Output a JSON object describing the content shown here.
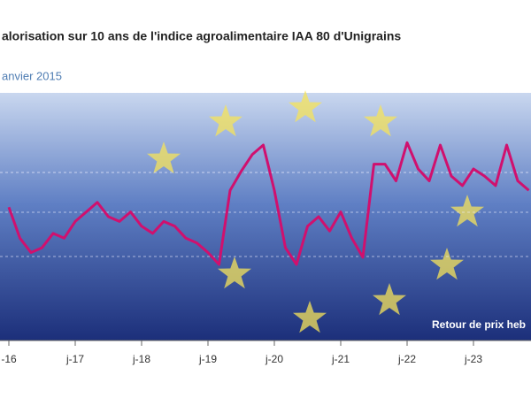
{
  "chart_data": {
    "type": "line",
    "title": "alorisation sur 10 ans de l'indice agroalimentaire IAA 80 d'Unigrains",
    "subtitle": "anvier 2015",
    "annotation": "Retour de prix heb",
    "categories": [
      "-16",
      null,
      null,
      null,
      null,
      null,
      "j-17",
      null,
      null,
      null,
      null,
      null,
      "j-18",
      null,
      null,
      null,
      null,
      null,
      "j-19",
      null,
      null,
      null,
      null,
      null,
      "j-20",
      null,
      null,
      null,
      null,
      null,
      "j-21",
      null,
      null,
      null,
      null,
      null,
      "j-22",
      null,
      null,
      null,
      null,
      null,
      "j-23",
      null,
      null,
      null,
      null,
      null
    ],
    "series": [
      {
        "color": "#d0106e",
        "values": [
          54,
          41,
          35,
          37,
          43,
          41,
          48,
          52,
          56,
          50,
          48,
          52,
          46,
          43,
          48,
          46,
          41,
          39,
          35,
          30,
          61,
          69,
          76,
          80,
          61,
          37,
          30,
          46,
          50,
          44,
          52,
          41,
          33,
          72,
          72,
          65,
          81,
          70,
          65,
          80,
          67,
          63,
          70,
          67,
          63,
          80,
          65,
          61
        ]
      }
    ],
    "ylim": [
      0,
      100
    ]
  }
}
